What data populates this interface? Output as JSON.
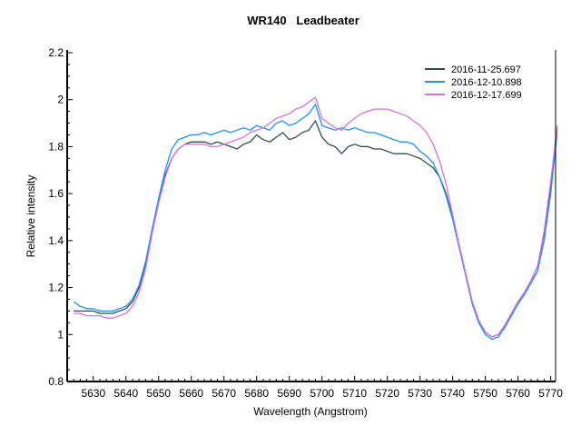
{
  "chart_data": {
    "type": "line",
    "title": "WR140   Leadbeater",
    "xlabel": "Wavelength (Angstrom)",
    "ylabel": "Relative intensity",
    "xlim": [
      5622,
      5771.5
    ],
    "ylim": [
      0.8,
      2.2
    ],
    "x_ticks": [
      5630,
      5640,
      5650,
      5660,
      5670,
      5680,
      5690,
      5700,
      5710,
      5720,
      5730,
      5740,
      5750,
      5760,
      5770
    ],
    "y_ticks": [
      0.8,
      1,
      1.2,
      1.4,
      1.6,
      1.8,
      2,
      2.2
    ],
    "y_tick_labels": [
      "0.8",
      "1",
      "1.2",
      "1.4",
      "1.6",
      "1.8",
      "2",
      "2.2"
    ],
    "grid": false,
    "legend_position": "top-right",
    "x_start": 5624,
    "x_step": 2,
    "series": [
      {
        "name": "2016-11-25.697",
        "color": "#2f4f4f",
        "values": [
          1.1,
          1.1,
          1.1,
          1.1,
          1.09,
          1.09,
          1.09,
          1.1,
          1.11,
          1.14,
          1.2,
          1.3,
          1.44,
          1.57,
          1.68,
          1.75,
          1.79,
          1.81,
          1.82,
          1.82,
          1.82,
          1.81,
          1.82,
          1.81,
          1.8,
          1.79,
          1.81,
          1.82,
          1.85,
          1.83,
          1.82,
          1.84,
          1.86,
          1.83,
          1.84,
          1.86,
          1.87,
          1.91,
          1.84,
          1.81,
          1.8,
          1.77,
          1.8,
          1.81,
          1.8,
          1.8,
          1.79,
          1.79,
          1.78,
          1.77,
          1.77,
          1.77,
          1.76,
          1.75,
          1.73,
          1.71,
          1.67,
          1.6,
          1.5,
          1.38,
          1.26,
          1.14,
          1.06,
          1.01,
          0.99,
          1.0,
          1.04,
          1.09,
          1.14,
          1.18,
          1.23,
          1.29,
          1.43,
          1.63,
          1.88
        ]
      },
      {
        "name": "2016-12-10.898",
        "color": "#1e90ff",
        "values": [
          1.14,
          1.12,
          1.11,
          1.11,
          1.1,
          1.1,
          1.1,
          1.11,
          1.12,
          1.15,
          1.21,
          1.31,
          1.45,
          1.58,
          1.7,
          1.79,
          1.83,
          1.84,
          1.85,
          1.85,
          1.86,
          1.85,
          1.86,
          1.87,
          1.86,
          1.87,
          1.88,
          1.87,
          1.89,
          1.88,
          1.87,
          1.9,
          1.91,
          1.89,
          1.9,
          1.92,
          1.94,
          1.98,
          1.89,
          1.88,
          1.87,
          1.88,
          1.87,
          1.88,
          1.87,
          1.86,
          1.86,
          1.85,
          1.84,
          1.83,
          1.82,
          1.82,
          1.81,
          1.78,
          1.76,
          1.73,
          1.67,
          1.59,
          1.49,
          1.37,
          1.25,
          1.13,
          1.05,
          1.0,
          0.98,
          0.99,
          1.03,
          1.08,
          1.13,
          1.17,
          1.22,
          1.27,
          1.4,
          1.6,
          1.86
        ]
      },
      {
        "name": "2016-12-17.699",
        "color": "#da70d6",
        "values": [
          1.09,
          1.09,
          1.08,
          1.08,
          1.08,
          1.07,
          1.07,
          1.08,
          1.09,
          1.12,
          1.18,
          1.28,
          1.43,
          1.56,
          1.67,
          1.75,
          1.79,
          1.81,
          1.81,
          1.81,
          1.81,
          1.8,
          1.8,
          1.81,
          1.82,
          1.83,
          1.84,
          1.86,
          1.87,
          1.88,
          1.9,
          1.92,
          1.93,
          1.94,
          1.96,
          1.97,
          1.99,
          2.01,
          1.92,
          1.9,
          1.88,
          1.87,
          1.9,
          1.92,
          1.94,
          1.95,
          1.96,
          1.96,
          1.96,
          1.95,
          1.94,
          1.93,
          1.91,
          1.89,
          1.86,
          1.81,
          1.74,
          1.64,
          1.51,
          1.38,
          1.26,
          1.14,
          1.06,
          1.01,
          0.99,
          1.0,
          1.04,
          1.09,
          1.14,
          1.18,
          1.23,
          1.29,
          1.44,
          1.65,
          1.89
        ]
      }
    ]
  }
}
